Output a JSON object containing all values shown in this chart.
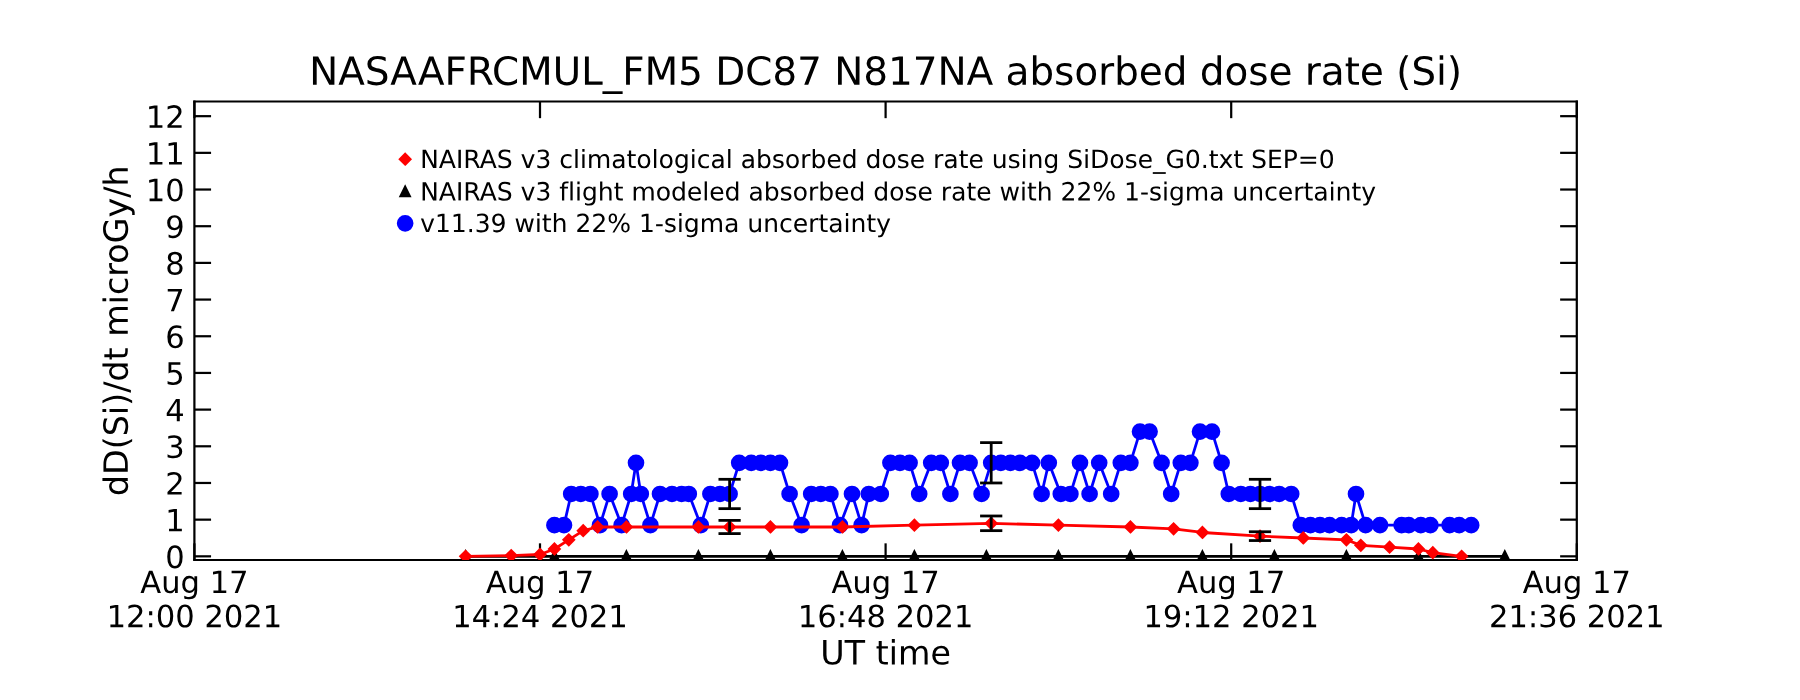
{
  "chart_data": {
    "type": "line",
    "title": "NASAAFRCMUL_FM5 DC87 N817NA absorbed dose rate (Si)",
    "xlabel": "UT time",
    "ylabel": "dD(Si)/dt microGy/h",
    "xlim": [
      "2021-08-17T12:00",
      "2021-08-17T21:36"
    ],
    "ylim": [
      -0.1,
      12.4
    ],
    "xticks": [
      {
        "value": "2021-08-17T12:00",
        "label": "Aug 17\n12:00 2021"
      },
      {
        "value": "2021-08-17T14:24",
        "label": "Aug 17\n14:24 2021"
      },
      {
        "value": "2021-08-17T16:48",
        "label": "Aug 17\n16:48 2021"
      },
      {
        "value": "2021-08-17T19:12",
        "label": "Aug 17\n19:12 2021"
      },
      {
        "value": "2021-08-17T21:36",
        "label": "Aug 17\n21:36 2021"
      }
    ],
    "yticks": [
      0,
      1,
      2,
      3,
      4,
      5,
      6,
      7,
      8,
      9,
      10,
      11,
      12
    ],
    "grid": false,
    "legend": "top",
    "series": [
      {
        "name": "NAIRAS v3 climatological absorbed dose rate using SiDose_G0.txt SEP=0",
        "color": "#ff0000",
        "marker": "diamond",
        "x": [
          "2021-08-17T13:53",
          "2021-08-17T14:12",
          "2021-08-17T14:24",
          "2021-08-17T14:30",
          "2021-08-17T14:36",
          "2021-08-17T14:42",
          "2021-08-17T14:48",
          "2021-08-17T15:00",
          "2021-08-17T15:30",
          "2021-08-17T15:43",
          "2021-08-17T16:00",
          "2021-08-17T16:30",
          "2021-08-17T17:00",
          "2021-08-17T17:32",
          "2021-08-17T18:00",
          "2021-08-17T18:30",
          "2021-08-17T18:48",
          "2021-08-17T19:00",
          "2021-08-17T19:24",
          "2021-08-17T19:42",
          "2021-08-17T20:00",
          "2021-08-17T20:06",
          "2021-08-17T20:18",
          "2021-08-17T20:30",
          "2021-08-17T20:36",
          "2021-08-17T20:48"
        ],
        "values": [
          0,
          0.02,
          0.05,
          0.2,
          0.45,
          0.7,
          0.8,
          0.8,
          0.8,
          0.8,
          0.8,
          0.8,
          0.85,
          0.9,
          0.85,
          0.8,
          0.75,
          0.65,
          0.55,
          0.5,
          0.45,
          0.3,
          0.25,
          0.2,
          0.1,
          0.0
        ],
        "errors": [
          null,
          null,
          null,
          null,
          null,
          null,
          null,
          null,
          null,
          0.18,
          null,
          null,
          null,
          0.2,
          null,
          null,
          null,
          null,
          0.12,
          null,
          null,
          null,
          null,
          null,
          null,
          null
        ]
      },
      {
        "name": "NAIRAS v3 flight modeled absorbed dose rate with 22% 1-sigma uncertainty",
        "color": "#000000",
        "marker": "triangle",
        "x": [
          "2021-08-17T13:53",
          "2021-08-17T14:30",
          "2021-08-17T15:00",
          "2021-08-17T15:30",
          "2021-08-17T16:00",
          "2021-08-17T16:30",
          "2021-08-17T17:00",
          "2021-08-17T17:30",
          "2021-08-17T18:00",
          "2021-08-17T18:30",
          "2021-08-17T19:00",
          "2021-08-17T19:30",
          "2021-08-17T20:00",
          "2021-08-17T20:30",
          "2021-08-17T21:06"
        ],
        "values": [
          0,
          0,
          0,
          0,
          0,
          0,
          0,
          0,
          0,
          0,
          0,
          0,
          0,
          0,
          0
        ]
      },
      {
        "name": "v11.39 with 22% 1-sigma uncertainty",
        "color": "#0000ff",
        "marker": "circle",
        "x": [
          "2021-08-17T14:30",
          "2021-08-17T14:34",
          "2021-08-17T14:37",
          "2021-08-17T14:41",
          "2021-08-17T14:45",
          "2021-08-17T14:49",
          "2021-08-17T14:53",
          "2021-08-17T14:58",
          "2021-08-17T15:02",
          "2021-08-17T15:04",
          "2021-08-17T15:06",
          "2021-08-17T15:10",
          "2021-08-17T15:14",
          "2021-08-17T15:19",
          "2021-08-17T15:23",
          "2021-08-17T15:26",
          "2021-08-17T15:31",
          "2021-08-17T15:35",
          "2021-08-17T15:39",
          "2021-08-17T15:43",
          "2021-08-17T15:47",
          "2021-08-17T15:52",
          "2021-08-17T15:56",
          "2021-08-17T16:00",
          "2021-08-17T16:04",
          "2021-08-17T16:08",
          "2021-08-17T16:13",
          "2021-08-17T16:17",
          "2021-08-17T16:21",
          "2021-08-17T16:25",
          "2021-08-17T16:29",
          "2021-08-17T16:34",
          "2021-08-17T16:38",
          "2021-08-17T16:41",
          "2021-08-17T16:46",
          "2021-08-17T16:50",
          "2021-08-17T16:54",
          "2021-08-17T16:58",
          "2021-08-17T17:02",
          "2021-08-17T17:07",
          "2021-08-17T17:11",
          "2021-08-17T17:15",
          "2021-08-17T17:19",
          "2021-08-17T17:23",
          "2021-08-17T17:28",
          "2021-08-17T17:32",
          "2021-08-17T17:36",
          "2021-08-17T17:40",
          "2021-08-17T17:44",
          "2021-08-17T17:49",
          "2021-08-17T17:53",
          "2021-08-17T17:56",
          "2021-08-17T18:01",
          "2021-08-17T18:05",
          "2021-08-17T18:09",
          "2021-08-17T18:13",
          "2021-08-17T18:17",
          "2021-08-17T18:22",
          "2021-08-17T18:26",
          "2021-08-17T18:30",
          "2021-08-17T18:34",
          "2021-08-17T18:38",
          "2021-08-17T18:43",
          "2021-08-17T18:47",
          "2021-08-17T18:51",
          "2021-08-17T18:55",
          "2021-08-17T18:59",
          "2021-08-17T19:04",
          "2021-08-17T19:08",
          "2021-08-17T19:11",
          "2021-08-17T19:16",
          "2021-08-17T19:20",
          "2021-08-17T19:24",
          "2021-08-17T19:28",
          "2021-08-17T19:32",
          "2021-08-17T19:37",
          "2021-08-17T19:41",
          "2021-08-17T19:45",
          "2021-08-17T19:49",
          "2021-08-17T19:53",
          "2021-08-17T19:58",
          "2021-08-17T20:02",
          "2021-08-17T20:04",
          "2021-08-17T20:08",
          "2021-08-17T20:14",
          "2021-08-17T20:23",
          "2021-08-17T20:26",
          "2021-08-17T20:31",
          "2021-08-17T20:35",
          "2021-08-17T20:43",
          "2021-08-17T20:47",
          "2021-08-17T20:52"
        ],
        "values": [
          0.85,
          0.85,
          1.7,
          1.7,
          1.7,
          0.85,
          1.7,
          0.85,
          1.7,
          2.55,
          1.7,
          0.85,
          1.7,
          1.7,
          1.7,
          1.7,
          0.85,
          1.7,
          1.7,
          1.7,
          2.55,
          2.55,
          2.55,
          2.55,
          2.55,
          1.7,
          0.85,
          1.7,
          1.7,
          1.7,
          0.85,
          1.7,
          0.85,
          1.7,
          1.7,
          2.55,
          2.55,
          2.55,
          1.7,
          2.55,
          2.55,
          1.7,
          2.55,
          2.55,
          1.7,
          2.55,
          2.55,
          2.55,
          2.55,
          2.55,
          1.7,
          2.55,
          1.7,
          1.7,
          2.55,
          1.7,
          2.55,
          1.7,
          2.55,
          2.55,
          3.4,
          3.4,
          2.55,
          1.7,
          2.55,
          2.55,
          3.4,
          3.4,
          2.55,
          1.7,
          1.7,
          1.7,
          1.7,
          1.7,
          1.7,
          1.7,
          0.85,
          0.85,
          0.85,
          0.85,
          0.85,
          0.85,
          1.7,
          0.85,
          0.85,
          0.85,
          0.85,
          0.85,
          0.85,
          0.85,
          0.85,
          0.85
        ],
        "errors": [
          null,
          null,
          null,
          null,
          null,
          null,
          null,
          null,
          null,
          null,
          null,
          null,
          null,
          null,
          null,
          null,
          null,
          null,
          null,
          0.4,
          null,
          null,
          null,
          null,
          null,
          null,
          null,
          null,
          null,
          null,
          null,
          null,
          null,
          null,
          null,
          null,
          null,
          null,
          null,
          null,
          null,
          null,
          null,
          null,
          null,
          0.55,
          null,
          null,
          null,
          null,
          null,
          null,
          null,
          null,
          null,
          null,
          null,
          null,
          null,
          null,
          null,
          null,
          null,
          null,
          null,
          null,
          null,
          null,
          null,
          null,
          null,
          null,
          0.4,
          null,
          null,
          null,
          null,
          null,
          null,
          null,
          null,
          null,
          null,
          null,
          null,
          null,
          null,
          null,
          null,
          null,
          null,
          null
        ]
      }
    ]
  }
}
